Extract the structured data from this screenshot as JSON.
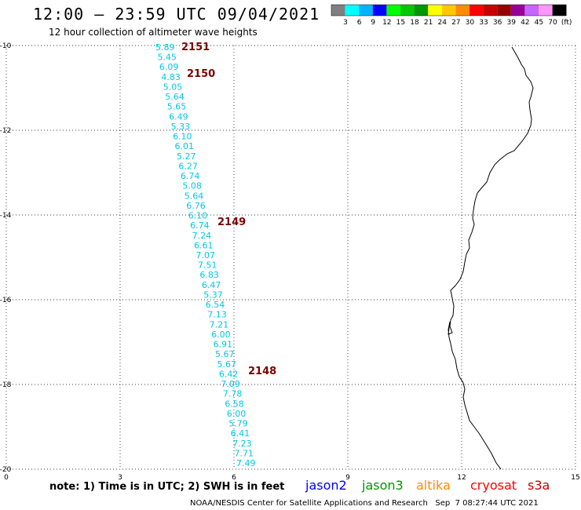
{
  "header": {
    "title": "12:00 — 23:59 UTC 09/04/2021",
    "subtitle": "12 hour collection of altimeter wave heights"
  },
  "legend": {
    "colors": [
      "#808080",
      "#00ffff",
      "#00b4ff",
      "#0000ff",
      "#00ff00",
      "#00c800",
      "#009600",
      "#ffff00",
      "#ffc800",
      "#ff8c00",
      "#ff0000",
      "#c80000",
      "#960000",
      "#960096",
      "#c864ff",
      "#ff96ff",
      "#000000"
    ],
    "ticks": [
      "3",
      "6",
      "9",
      "12",
      "15",
      "18",
      "21",
      "24",
      "27",
      "30",
      "33",
      "36",
      "39",
      "42",
      "45",
      "70",
      "(ft)"
    ]
  },
  "axes": {
    "y_labels": [
      "-10",
      "-12",
      "-14",
      "-16",
      "-18",
      "-20"
    ],
    "x_labels": [
      "0",
      "3",
      "6",
      "9",
      "12",
      "15"
    ]
  },
  "observations": [
    "5.89",
    "5.45",
    "6.09",
    "4.83",
    "5.05",
    "5.64",
    "5.65",
    "6.49",
    "5.33",
    "6.10",
    "6.01",
    "5.27",
    "6.27",
    "6.74",
    "5.08",
    "5.64",
    "6.76",
    "6.10",
    "6.74",
    "7.24",
    "6.61",
    "7.07",
    "7.51",
    "6.83",
    "6.47",
    "5.37",
    "6.54",
    "7.13",
    "7.21",
    "6.00",
    "6.91",
    "5.67",
    "5.67",
    "6.42",
    "7.09",
    "7.78",
    "6.58",
    "6.00",
    "5.79",
    "6.41",
    "7.23",
    "7.71",
    "7.49"
  ],
  "times": [
    "2151",
    "2150",
    "2149",
    "2148"
  ],
  "note": "note: 1) Time is in UTC; 2) SWH is in feet",
  "satellites": [
    {
      "name": "jason2",
      "color": "#0000ff"
    },
    {
      "name": "jason3",
      "color": "#009600"
    },
    {
      "name": "altika",
      "color": "#ff8c00"
    },
    {
      "name": "cryosat",
      "color": "#ff0000"
    },
    {
      "name": "s3a",
      "color": "#c80000"
    }
  ],
  "credit": "NOAA/NESDIS Center for Satellite Applications and Research   Sep  7 08:27:44 UTC 2021"
}
